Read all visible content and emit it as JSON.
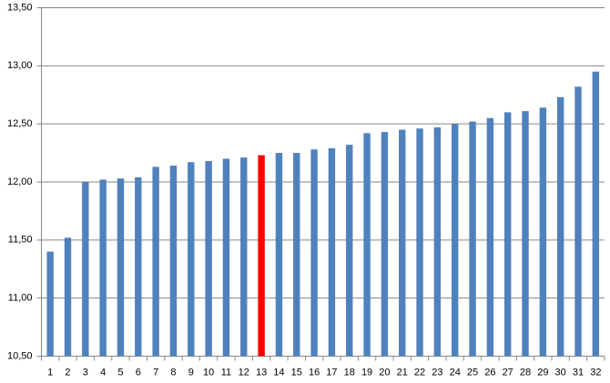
{
  "chart_data": {
    "type": "bar",
    "categories": [
      "1",
      "2",
      "3",
      "4",
      "5",
      "6",
      "7",
      "8",
      "9",
      "10",
      "11",
      "12",
      "13",
      "14",
      "15",
      "16",
      "17",
      "18",
      "19",
      "20",
      "21",
      "22",
      "23",
      "24",
      "25",
      "26",
      "27",
      "28",
      "29",
      "30",
      "31",
      "32"
    ],
    "values": [
      11.4,
      11.52,
      12.0,
      12.02,
      12.03,
      12.04,
      12.13,
      12.14,
      12.17,
      12.18,
      12.2,
      12.21,
      12.23,
      12.25,
      12.25,
      12.28,
      12.29,
      12.32,
      12.42,
      12.43,
      12.45,
      12.46,
      12.47,
      12.5,
      12.52,
      12.55,
      12.6,
      12.61,
      12.64,
      12.73,
      12.82,
      12.95
    ],
    "colors": [
      "#4f81bd",
      "#4f81bd",
      "#4f81bd",
      "#4f81bd",
      "#4f81bd",
      "#4f81bd",
      "#4f81bd",
      "#4f81bd",
      "#4f81bd",
      "#4f81bd",
      "#4f81bd",
      "#4f81bd",
      "#ff0000",
      "#4f81bd",
      "#4f81bd",
      "#4f81bd",
      "#4f81bd",
      "#4f81bd",
      "#4f81bd",
      "#4f81bd",
      "#4f81bd",
      "#4f81bd",
      "#4f81bd",
      "#4f81bd",
      "#4f81bd",
      "#4f81bd",
      "#4f81bd",
      "#4f81bd",
      "#4f81bd",
      "#4f81bd",
      "#4f81bd",
      "#4f81bd"
    ],
    "ylim": [
      10.5,
      13.5
    ],
    "yticks": [
      {
        "value": 10.5,
        "label": "10,50"
      },
      {
        "value": 11,
        "label": "11,00"
      },
      {
        "value": 11.5,
        "label": "11,50"
      },
      {
        "value": 12,
        "label": "12,00"
      },
      {
        "value": 12.5,
        "label": "12,50"
      },
      {
        "value": 13,
        "label": "13,00"
      },
      {
        "value": 13.5,
        "label": "13,50"
      }
    ],
    "grid": true
  }
}
